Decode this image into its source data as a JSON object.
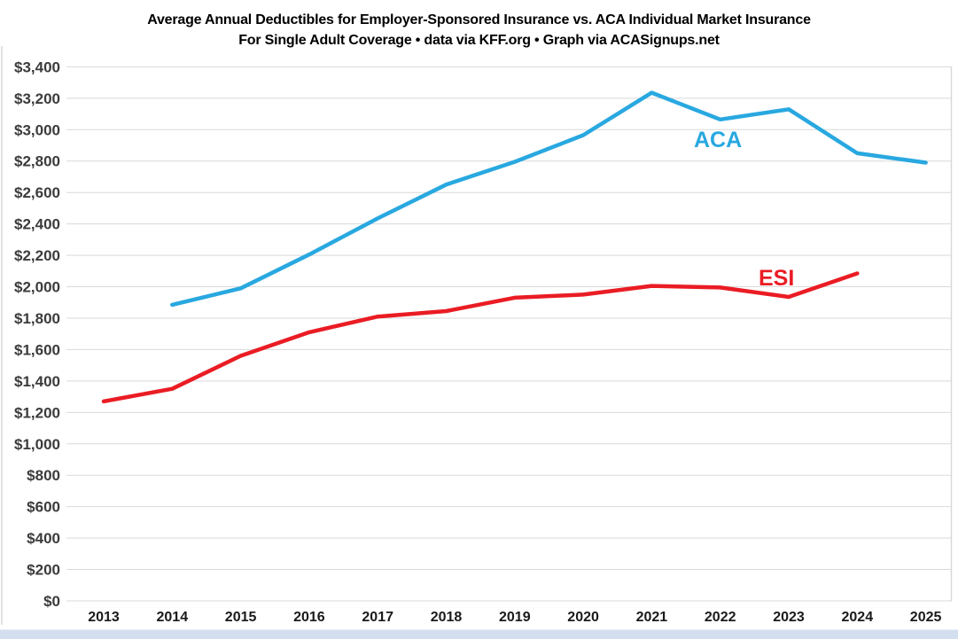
{
  "page": {
    "background_color": "#ffffff",
    "bottom_strip_color": "#d3dfef"
  },
  "chart_data": {
    "type": "line",
    "title_line1": "Average Annual Deductibles for Employer-Sponsored Insurance vs. ACA Individual Market Insurance",
    "title_line2": "For Single Adult Coverage • data via KFF.org • Graph via ACASignups.net",
    "x_tick_labels": [
      "2013",
      "2014",
      "2015",
      "2016",
      "2017",
      "2018",
      "2019",
      "2020",
      "2021",
      "2022",
      "2023",
      "2024",
      "2025"
    ],
    "y_ticks": [
      0,
      200,
      400,
      600,
      800,
      1000,
      1200,
      1400,
      1600,
      1800,
      2000,
      2200,
      2400,
      2600,
      2800,
      3000,
      3200,
      3400
    ],
    "y_tick_labels": [
      "$0",
      "$200",
      "$400",
      "$600",
      "$800",
      "$1,000",
      "$1,200",
      "$1,400",
      "$1,600",
      "$1,800",
      "$2,000",
      "$2,200",
      "$2,400",
      "$2,600",
      "$2,800",
      "$3,000",
      "$3,200",
      "$3,400"
    ],
    "ylim": [
      0,
      3400
    ],
    "grid": "horizontal-only",
    "legend": "inline-series-labels",
    "series": [
      {
        "name": "ACA",
        "color": "#29a8e0",
        "values": [
          null,
          1885,
          1990,
          2205,
          2435,
          2650,
          2795,
          2965,
          3235,
          3065,
          3130,
          2850,
          2790
        ]
      },
      {
        "name": "ESI",
        "color": "#ea1c24",
        "values": [
          1270,
          1350,
          1560,
          1710,
          1810,
          1845,
          1930,
          1950,
          2005,
          1995,
          1935,
          2085,
          null
        ]
      }
    ]
  }
}
